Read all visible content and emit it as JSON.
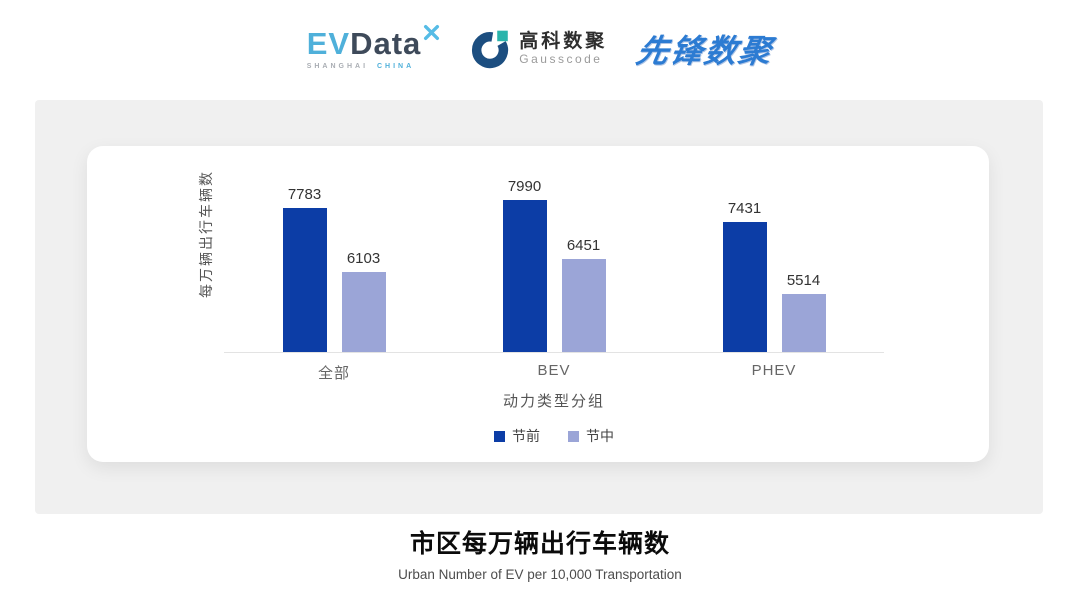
{
  "header": {
    "logos": {
      "evdata": {
        "main_ev": "EV",
        "main_data": "Data",
        "tagline_left": "SHANGHAI",
        "tagline_right": "CHINA",
        "blue": "#4fb0da",
        "dark": "#3e4a5a",
        "star_color": "#56bce6"
      },
      "gausscode": {
        "name_cn": "高科数聚",
        "name_en": "Gausscode",
        "navy": "#1c4e80",
        "teal": "#2ab4ab"
      },
      "pioneer": {
        "name": "先锋数聚",
        "blue": "#2c7bd2"
      }
    }
  },
  "chart_data": {
    "type": "bar",
    "title": "市区每万辆出行车辆数",
    "subtitle": "Urban Number of EV per 10,000 Transportation",
    "categories": [
      "全部",
      "BEV",
      "PHEV"
    ],
    "series": [
      {
        "name": "节前",
        "color": "#0c3da6",
        "values": [
          7783,
          7990,
          7431
        ]
      },
      {
        "name": "节中",
        "color": "#9ba5d7",
        "values": [
          6103,
          6451,
          5514
        ]
      }
    ],
    "xlabel": "动力类型分组",
    "ylabel": "每万辆出行车辆数",
    "ylim": [
      4000,
      9450
    ],
    "grid": false,
    "legend_position": "bottom",
    "value_labels": true
  },
  "footer": {
    "title": "市区每万辆出行车辆数",
    "subtitle": "Urban Number of EV per 10,000 Transportation"
  }
}
